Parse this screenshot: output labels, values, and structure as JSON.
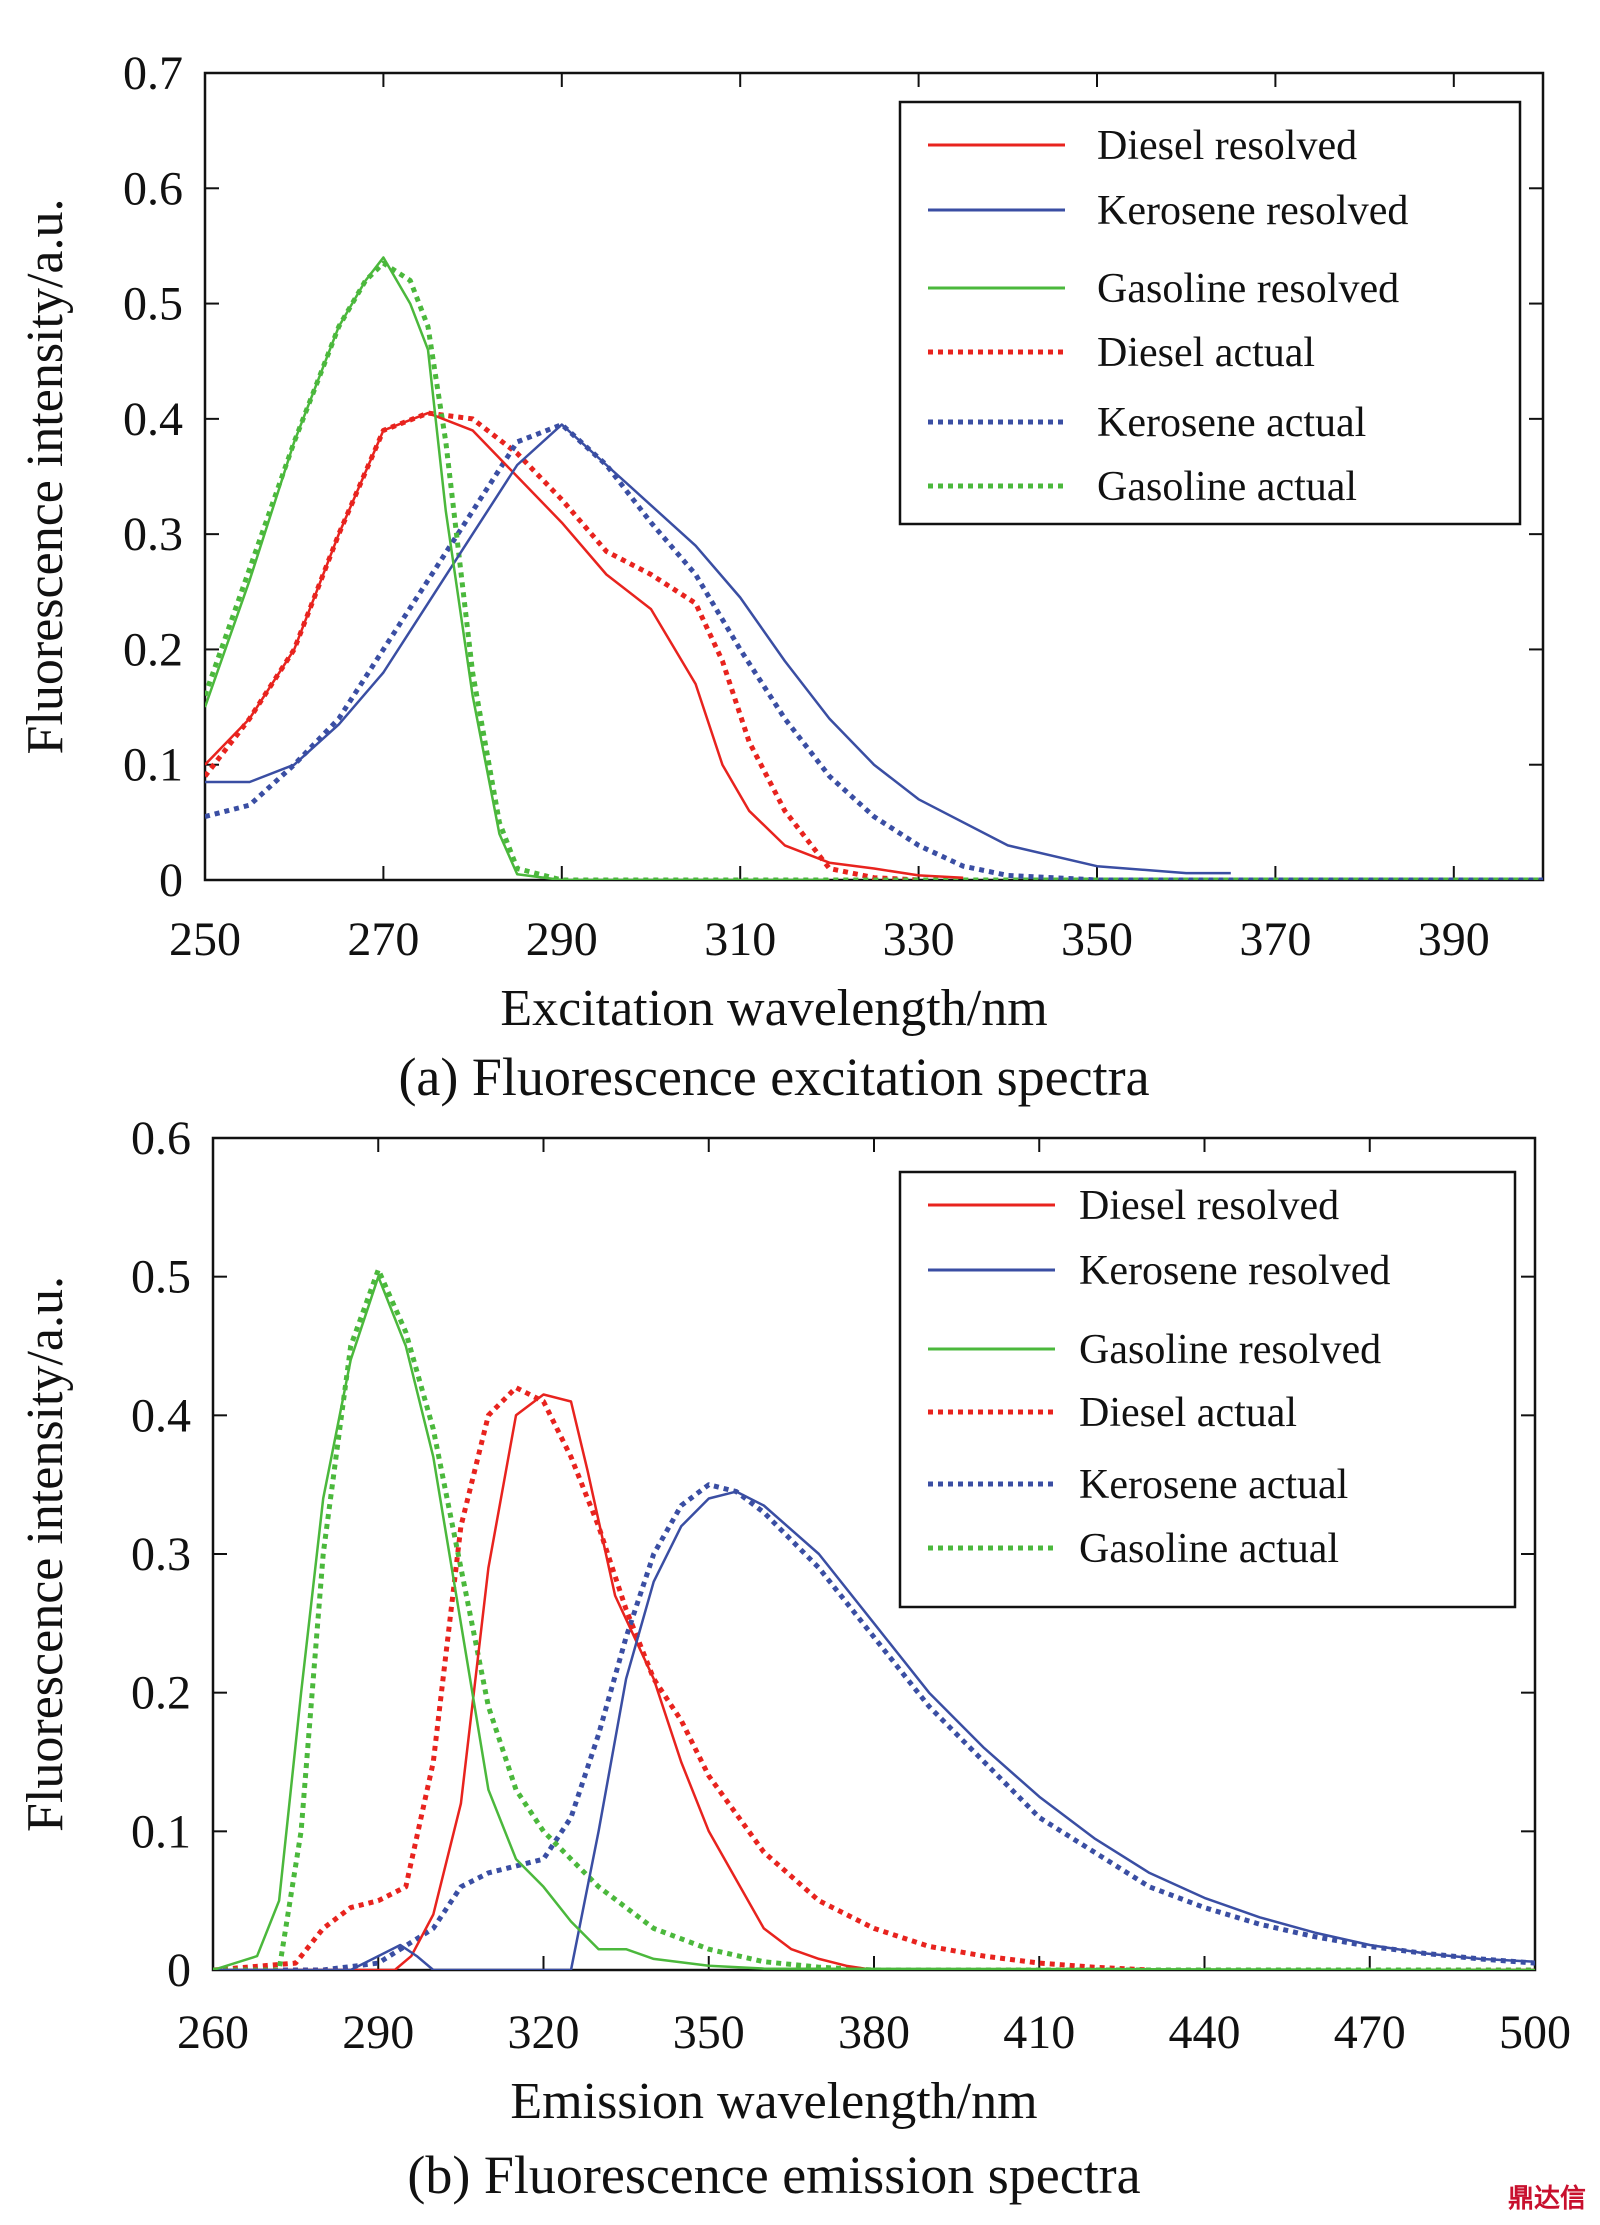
{
  "watermark": "鼎达信",
  "chart_data": [
    {
      "type": "line",
      "caption": "(a) Fluorescence excitation spectra",
      "xlabel": "Excitation wavelength/nm",
      "ylabel": "Fluorescence intensity/a.u.",
      "xlim": [
        250,
        400
      ],
      "ylim": [
        0,
        0.7
      ],
      "xticks": [
        250,
        270,
        290,
        310,
        330,
        350,
        370,
        390
      ],
      "yticks": [
        0,
        0.1,
        0.2,
        0.3,
        0.4,
        0.5,
        0.6,
        0.7
      ],
      "ytick_labels": [
        "0",
        "0.1",
        "0.2",
        "0.3",
        "0.4",
        "0.5",
        "0.6",
        "0.7"
      ],
      "legend_position": "top-right",
      "series": [
        {
          "name": "Diesel resolved",
          "color": "#e8231e",
          "style": "solid",
          "x": [
            250,
            255,
            260,
            265,
            270,
            275,
            280,
            285,
            290,
            295,
            300,
            305,
            308,
            311,
            315,
            320,
            325,
            330,
            335
          ],
          "y": [
            0.1,
            0.14,
            0.2,
            0.3,
            0.39,
            0.405,
            0.39,
            0.35,
            0.31,
            0.265,
            0.235,
            0.17,
            0.1,
            0.06,
            0.03,
            0.015,
            0.01,
            0.004,
            0.002
          ]
        },
        {
          "name": "Kerosene resolved",
          "color": "#3a4ea3",
          "style": "solid",
          "x": [
            250,
            255,
            260,
            265,
            270,
            275,
            280,
            285,
            290,
            295,
            300,
            305,
            310,
            315,
            320,
            325,
            330,
            340,
            350,
            360,
            365
          ],
          "y": [
            0.085,
            0.085,
            0.1,
            0.135,
            0.18,
            0.24,
            0.3,
            0.36,
            0.395,
            0.36,
            0.325,
            0.29,
            0.245,
            0.19,
            0.14,
            0.1,
            0.07,
            0.03,
            0.012,
            0.006,
            0.006
          ]
        },
        {
          "name": "Gasoline resolved",
          "color": "#4bb83c",
          "style": "solid",
          "x": [
            250,
            255,
            260,
            265,
            268,
            270,
            273,
            275,
            277,
            280,
            283,
            285,
            290,
            300,
            320
          ],
          "y": [
            0.15,
            0.26,
            0.38,
            0.48,
            0.52,
            0.54,
            0.5,
            0.46,
            0.32,
            0.16,
            0.04,
            0.005,
            0.0,
            0.0,
            0.0
          ]
        },
        {
          "name": "Diesel actual",
          "color": "#e8231e",
          "style": "dotted",
          "x": [
            250,
            255,
            260,
            265,
            270,
            275,
            280,
            285,
            290,
            295,
            300,
            305,
            308,
            311,
            315,
            320,
            325,
            330
          ],
          "y": [
            0.09,
            0.14,
            0.2,
            0.3,
            0.39,
            0.405,
            0.4,
            0.37,
            0.33,
            0.285,
            0.265,
            0.24,
            0.19,
            0.12,
            0.06,
            0.01,
            0.002,
            0.0
          ]
        },
        {
          "name": "Kerosene actual",
          "color": "#3a4ea3",
          "style": "dotted",
          "x": [
            250,
            255,
            260,
            265,
            270,
            275,
            280,
            285,
            290,
            295,
            300,
            305,
            310,
            315,
            320,
            325,
            330,
            335,
            340,
            350,
            400
          ],
          "y": [
            0.055,
            0.065,
            0.1,
            0.14,
            0.2,
            0.26,
            0.32,
            0.38,
            0.395,
            0.36,
            0.31,
            0.265,
            0.2,
            0.14,
            0.09,
            0.055,
            0.03,
            0.012,
            0.004,
            0.0,
            0.0
          ]
        },
        {
          "name": "Gasoline actual",
          "color": "#4bb83c",
          "style": "dotted",
          "x": [
            250,
            255,
            260,
            265,
            268,
            270,
            273,
            275,
            277,
            280,
            283,
            285,
            290,
            320,
            400
          ],
          "y": [
            0.16,
            0.27,
            0.38,
            0.48,
            0.52,
            0.535,
            0.52,
            0.48,
            0.38,
            0.18,
            0.05,
            0.01,
            0.0,
            0.0,
            0.0
          ]
        }
      ]
    },
    {
      "type": "line",
      "caption": "(b) Fluorescence emission spectra",
      "xlabel": "Emission wavelength/nm",
      "ylabel": "Fluorescence intensity/a.u.",
      "xlim": [
        260,
        500
      ],
      "ylim": [
        0,
        0.6
      ],
      "xticks": [
        260,
        290,
        320,
        350,
        380,
        410,
        440,
        470,
        500
      ],
      "yticks": [
        0,
        0.1,
        0.2,
        0.3,
        0.4,
        0.5,
        0.6
      ],
      "ytick_labels": [
        "0",
        "0.1",
        "0.2",
        "0.3",
        "0.4",
        "0.5",
        "0.6"
      ],
      "legend_position": "top-right",
      "series": [
        {
          "name": "Diesel resolved",
          "color": "#e8231e",
          "style": "solid",
          "x": [
            260,
            293,
            296,
            300,
            305,
            310,
            315,
            320,
            325,
            328,
            333,
            340,
            345,
            350,
            355,
            360,
            365,
            370,
            375,
            380,
            500
          ],
          "y": [
            0.0,
            0.0,
            0.01,
            0.04,
            0.12,
            0.29,
            0.4,
            0.415,
            0.41,
            0.36,
            0.27,
            0.21,
            0.15,
            0.1,
            0.065,
            0.03,
            0.015,
            0.008,
            0.003,
            0.0,
            0.0
          ]
        },
        {
          "name": "Kerosene resolved",
          "color": "#3a4ea3",
          "style": "solid",
          "x": [
            260,
            285,
            290,
            294,
            297,
            300,
            325,
            330,
            335,
            340,
            345,
            350,
            355,
            360,
            370,
            380,
            390,
            400,
            410,
            420,
            430,
            440,
            450,
            460,
            470,
            480,
            490,
            500
          ],
          "y": [
            0.0,
            0.0,
            0.01,
            0.018,
            0.01,
            0.0,
            0.0,
            0.1,
            0.21,
            0.28,
            0.32,
            0.34,
            0.345,
            0.335,
            0.3,
            0.25,
            0.2,
            0.16,
            0.125,
            0.095,
            0.07,
            0.052,
            0.038,
            0.027,
            0.018,
            0.012,
            0.008,
            0.006
          ]
        },
        {
          "name": "Gasoline resolved",
          "color": "#4bb83c",
          "style": "solid",
          "x": [
            260,
            268,
            272,
            276,
            280,
            285,
            290,
            295,
            300,
            305,
            310,
            315,
            320,
            325,
            330,
            335,
            340,
            350,
            360,
            500
          ],
          "y": [
            0.0,
            0.01,
            0.05,
            0.2,
            0.34,
            0.44,
            0.5,
            0.45,
            0.37,
            0.25,
            0.13,
            0.08,
            0.06,
            0.035,
            0.015,
            0.015,
            0.008,
            0.003,
            0.001,
            0.0
          ]
        },
        {
          "name": "Diesel actual",
          "color": "#e8231e",
          "style": "dotted",
          "x": [
            260,
            275,
            280,
            285,
            290,
            295,
            300,
            305,
            310,
            315,
            320,
            325,
            330,
            335,
            340,
            345,
            350,
            360,
            370,
            380,
            390,
            400,
            410,
            420,
            430
          ],
          "y": [
            0.0,
            0.005,
            0.03,
            0.045,
            0.05,
            0.06,
            0.15,
            0.32,
            0.4,
            0.42,
            0.41,
            0.37,
            0.32,
            0.26,
            0.21,
            0.18,
            0.14,
            0.085,
            0.05,
            0.03,
            0.017,
            0.01,
            0.005,
            0.002,
            0.0
          ]
        },
        {
          "name": "Kerosene actual",
          "color": "#3a4ea3",
          "style": "dotted",
          "x": [
            260,
            280,
            290,
            300,
            305,
            310,
            315,
            320,
            325,
            330,
            335,
            340,
            345,
            350,
            355,
            360,
            370,
            380,
            390,
            400,
            410,
            420,
            430,
            440,
            450,
            460,
            470,
            480,
            490,
            500
          ],
          "y": [
            0.0,
            0.0,
            0.005,
            0.03,
            0.06,
            0.07,
            0.075,
            0.08,
            0.11,
            0.17,
            0.24,
            0.3,
            0.335,
            0.35,
            0.345,
            0.33,
            0.29,
            0.24,
            0.19,
            0.15,
            0.11,
            0.085,
            0.06,
            0.045,
            0.033,
            0.024,
            0.017,
            0.012,
            0.008,
            0.005
          ]
        },
        {
          "name": "Gasoline actual",
          "color": "#4bb83c",
          "style": "dotted",
          "x": [
            260,
            272,
            276,
            280,
            285,
            290,
            295,
            300,
            305,
            310,
            315,
            320,
            325,
            330,
            340,
            350,
            360,
            370,
            380,
            500
          ],
          "y": [
            0.0,
            0.0,
            0.1,
            0.3,
            0.45,
            0.505,
            0.46,
            0.39,
            0.29,
            0.19,
            0.13,
            0.1,
            0.08,
            0.06,
            0.03,
            0.015,
            0.006,
            0.002,
            0.0,
            0.0
          ]
        }
      ]
    }
  ]
}
